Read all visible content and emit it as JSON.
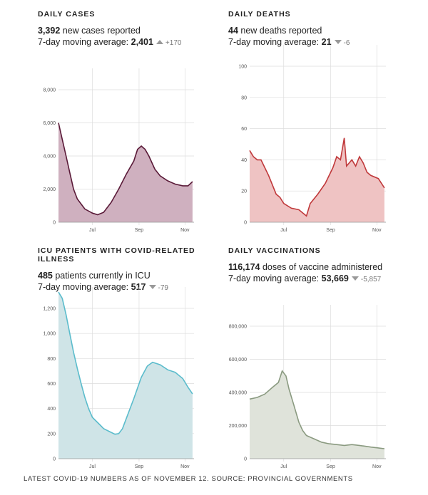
{
  "panels": [
    {
      "title": "DAILY CASES",
      "value": "3,392",
      "value_text": " new cases reported",
      "avg_label": "7-day moving average: ",
      "avg": "2,401",
      "dir": "up",
      "delta": "+170"
    },
    {
      "title": "DAILY DEATHS",
      "value": "44",
      "value_text": " new deaths reported",
      "avg_label": "7-day moving average: ",
      "avg": "21",
      "dir": "down",
      "delta": "-6"
    },
    {
      "title": "ICU PATIENTS WITH COVID-RELATED ILLNESS",
      "value": "485",
      "value_text": " patients currently in ICU",
      "avg_label": "7-day moving average: ",
      "avg": "517",
      "dir": "down",
      "delta": "-79"
    },
    {
      "title": "DAILY VACCINATIONS",
      "value": "116,174",
      "value_text": " doses of vaccine administered",
      "avg_label": "7-day moving average: ",
      "avg": "53,669",
      "dir": "down",
      "delta": "-5,857"
    }
  ],
  "footer": "LATEST COVID-19 NUMBERS AS OF NOVEMBER 12. SOURCE: PROVINCIAL GOVERNMENTS",
  "chart_data": [
    {
      "type": "area",
      "name": "daily-cases",
      "xlabels": [
        {
          "label": "Jul",
          "day": 45
        },
        {
          "label": "Sep",
          "day": 107
        },
        {
          "label": "Nov",
          "day": 168
        }
      ],
      "xdomain": [
        0,
        180
      ],
      "ylim": [
        0,
        8000
      ],
      "yticks": [
        "0",
        "2,000",
        "4,000",
        "6,000",
        "8,000"
      ],
      "ytickvals": [
        0,
        2000,
        4000,
        6000,
        8000
      ],
      "fill": "#cfb0bf",
      "stroke": "#5a1a38",
      "series": [
        [
          0,
          6000
        ],
        [
          5,
          5000
        ],
        [
          10,
          4000
        ],
        [
          15,
          3000
        ],
        [
          20,
          2000
        ],
        [
          25,
          1400
        ],
        [
          30,
          1100
        ],
        [
          35,
          800
        ],
        [
          45,
          550
        ],
        [
          52,
          450
        ],
        [
          60,
          600
        ],
        [
          70,
          1200
        ],
        [
          80,
          2000
        ],
        [
          90,
          2900
        ],
        [
          100,
          3700
        ],
        [
          105,
          4400
        ],
        [
          110,
          4600
        ],
        [
          115,
          4400
        ],
        [
          120,
          4000
        ],
        [
          128,
          3200
        ],
        [
          135,
          2800
        ],
        [
          145,
          2500
        ],
        [
          155,
          2300
        ],
        [
          165,
          2200
        ],
        [
          172,
          2200
        ],
        [
          178,
          2450
        ]
      ]
    },
    {
      "type": "area",
      "name": "daily-deaths",
      "xlabels": [
        {
          "label": "Jul",
          "day": 45
        },
        {
          "label": "Sep",
          "day": 107
        },
        {
          "label": "Nov",
          "day": 168
        }
      ],
      "xdomain": [
        0,
        180
      ],
      "ylim": [
        0,
        100
      ],
      "yticks": [
        "0",
        "20",
        "40",
        "60",
        "80",
        "100"
      ],
      "ytickvals": [
        0,
        20,
        40,
        60,
        80,
        100
      ],
      "fill": "#efc3c3",
      "stroke": "#c0393b",
      "series": [
        [
          0,
          46
        ],
        [
          5,
          42
        ],
        [
          10,
          40
        ],
        [
          15,
          40
        ],
        [
          20,
          35
        ],
        [
          25,
          30
        ],
        [
          30,
          24
        ],
        [
          35,
          18
        ],
        [
          40,
          16
        ],
        [
          45,
          12
        ],
        [
          55,
          9
        ],
        [
          65,
          8
        ],
        [
          70,
          6
        ],
        [
          75,
          4
        ],
        [
          80,
          12
        ],
        [
          90,
          18
        ],
        [
          100,
          25
        ],
        [
          110,
          35
        ],
        [
          115,
          42
        ],
        [
          120,
          40
        ],
        [
          125,
          54
        ],
        [
          128,
          36
        ],
        [
          135,
          40
        ],
        [
          140,
          36
        ],
        [
          145,
          42
        ],
        [
          150,
          38
        ],
        [
          155,
          32
        ],
        [
          160,
          30
        ],
        [
          170,
          28
        ],
        [
          178,
          22
        ]
      ]
    },
    {
      "type": "area",
      "name": "icu-patients",
      "xlabels": [
        {
          "label": "Jul",
          "day": 45
        },
        {
          "label": "Sep",
          "day": 107
        },
        {
          "label": "Nov",
          "day": 168
        }
      ],
      "xdomain": [
        0,
        180
      ],
      "ylim": [
        0,
        1200
      ],
      "yticks": [
        "0",
        "200",
        "400",
        "600",
        "800",
        "1,000",
        "1,200"
      ],
      "ytickvals": [
        0,
        200,
        400,
        600,
        800,
        1000,
        1200
      ],
      "fill": "#cfe4e7",
      "stroke": "#5bbccc",
      "series": [
        [
          0,
          1330
        ],
        [
          5,
          1280
        ],
        [
          10,
          1150
        ],
        [
          15,
          1000
        ],
        [
          20,
          850
        ],
        [
          25,
          720
        ],
        [
          30,
          600
        ],
        [
          35,
          490
        ],
        [
          40,
          400
        ],
        [
          45,
          330
        ],
        [
          55,
          270
        ],
        [
          60,
          240
        ],
        [
          70,
          210
        ],
        [
          75,
          195
        ],
        [
          80,
          200
        ],
        [
          85,
          240
        ],
        [
          90,
          320
        ],
        [
          100,
          480
        ],
        [
          110,
          650
        ],
        [
          118,
          740
        ],
        [
          125,
          770
        ],
        [
          135,
          750
        ],
        [
          145,
          710
        ],
        [
          155,
          690
        ],
        [
          165,
          640
        ],
        [
          172,
          570
        ],
        [
          178,
          517
        ]
      ]
    },
    {
      "type": "area",
      "name": "daily-vaccinations",
      "xlabels": [
        {
          "label": "Jul",
          "day": 45
        },
        {
          "label": "Sep",
          "day": 107
        },
        {
          "label": "Nov",
          "day": 168
        }
      ],
      "xdomain": [
        0,
        180
      ],
      "ylim": [
        0,
        800000
      ],
      "yticks": [
        "0",
        "200,000",
        "400,000",
        "600,000",
        "800,000"
      ],
      "ytickvals": [
        0,
        200000,
        400000,
        600000,
        800000
      ],
      "fill": "#dfe3da",
      "stroke": "#8a9a80",
      "series": [
        [
          0,
          360000
        ],
        [
          10,
          370000
        ],
        [
          20,
          390000
        ],
        [
          30,
          430000
        ],
        [
          38,
          460000
        ],
        [
          43,
          530000
        ],
        [
          48,
          500000
        ],
        [
          52,
          420000
        ],
        [
          58,
          330000
        ],
        [
          65,
          220000
        ],
        [
          70,
          170000
        ],
        [
          75,
          140000
        ],
        [
          85,
          120000
        ],
        [
          95,
          100000
        ],
        [
          105,
          90000
        ],
        [
          115,
          85000
        ],
        [
          125,
          80000
        ],
        [
          135,
          85000
        ],
        [
          145,
          80000
        ],
        [
          160,
          70000
        ],
        [
          170,
          65000
        ],
        [
          178,
          60000
        ]
      ]
    }
  ]
}
